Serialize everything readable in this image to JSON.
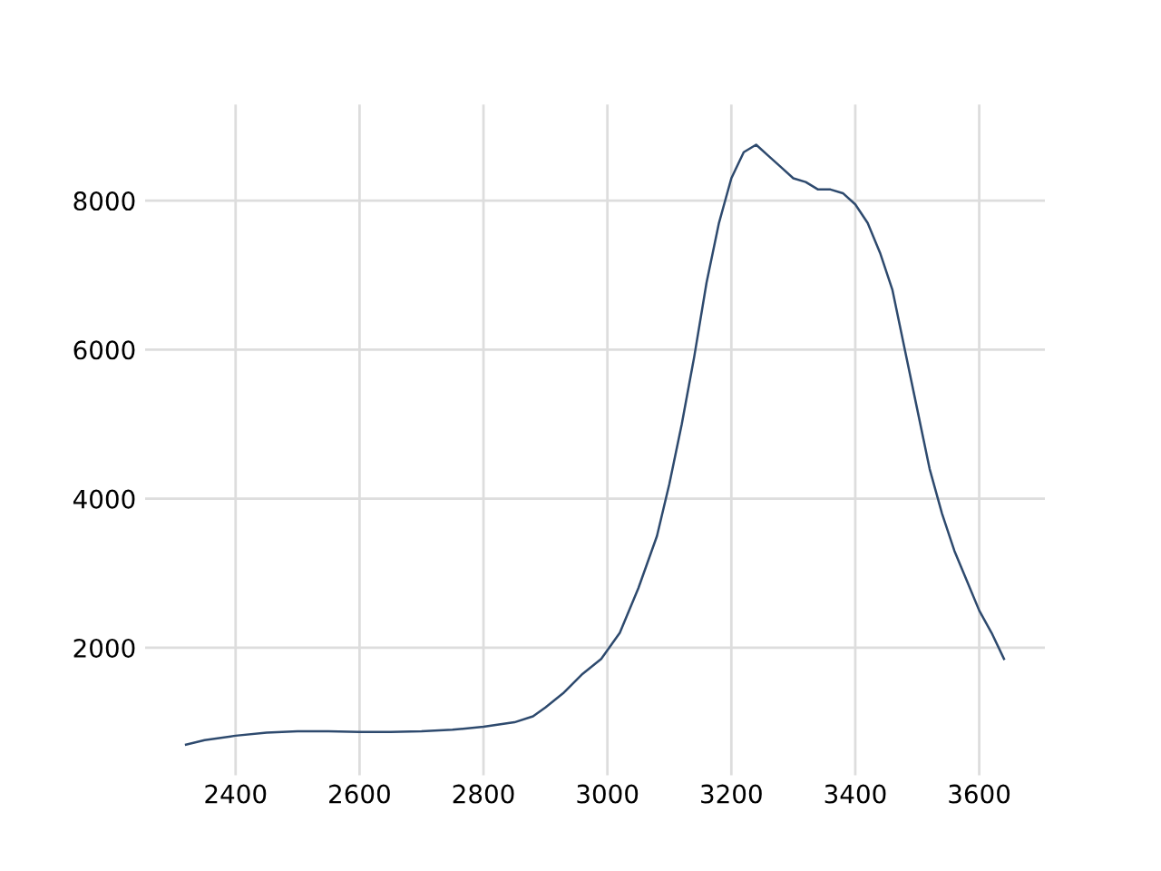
{
  "chart_data": {
    "type": "line",
    "x": [
      2320,
      2350,
      2400,
      2450,
      2500,
      2550,
      2600,
      2650,
      2700,
      2750,
      2800,
      2850,
      2880,
      2900,
      2930,
      2960,
      2990,
      3020,
      3050,
      3080,
      3100,
      3120,
      3140,
      3160,
      3180,
      3200,
      3220,
      3240,
      3260,
      3280,
      3300,
      3320,
      3340,
      3360,
      3380,
      3400,
      3420,
      3440,
      3460,
      3480,
      3500,
      3520,
      3540,
      3560,
      3580,
      3600,
      3620,
      3640
    ],
    "series": [
      {
        "color": "#2e4a6e",
        "values": [
          700,
          760,
          820,
          860,
          880,
          880,
          870,
          870,
          880,
          900,
          940,
          1000,
          1080,
          1200,
          1400,
          1650,
          1850,
          2200,
          2800,
          3500,
          4200,
          5000,
          5900,
          6900,
          7700,
          8300,
          8650,
          8750,
          8600,
          8450,
          8300,
          8250,
          8150,
          8150,
          8100,
          7950,
          7700,
          7300,
          6800,
          6000,
          5200,
          4400,
          3800,
          3300,
          2900,
          2500,
          2200,
          1850
        ]
      }
    ],
    "xlim": [
      2254,
      3706
    ],
    "ylim": [
      290,
      9290
    ],
    "xticks": [
      2400,
      2600,
      2800,
      3000,
      3200,
      3400,
      3600
    ],
    "yticks": [
      2000,
      4000,
      6000,
      8000
    ],
    "grid": true,
    "legend": false,
    "marker": "none",
    "line_style": "solid"
  }
}
